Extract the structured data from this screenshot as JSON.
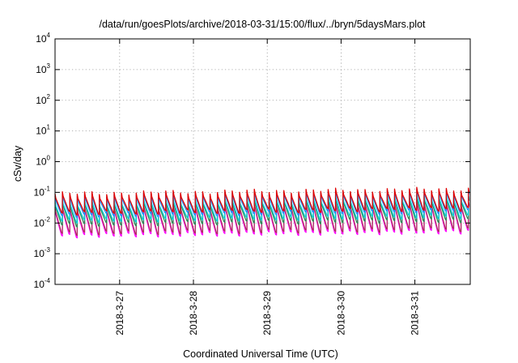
{
  "chart_data": {
    "type": "line",
    "title": "/data/run/goesPlots/archive/2018-03-31/15:00/flux/../bryn/5daysMars.plot",
    "xlabel": "Coordinated Universal Time (UTC)",
    "ylabel": "cSv/day",
    "yscale": "log",
    "ylim": [
      0.0001,
      10000
    ],
    "xlim": [
      "2018-03-26 03:00",
      "2018-03-31 18:00"
    ],
    "x_ticks": [
      "2018-3-27",
      "2018-3-28",
      "2018-3-29",
      "2018-3-30",
      "2018-3-31"
    ],
    "y_ticks": [
      {
        "base": "10",
        "exp": "-4"
      },
      {
        "base": "10",
        "exp": "-3"
      },
      {
        "base": "10",
        "exp": "-2"
      },
      {
        "base": "10",
        "exp": "-1"
      },
      {
        "base": "10",
        "exp": "0"
      },
      {
        "base": "10",
        "exp": "1"
      },
      {
        "base": "10",
        "exp": "2"
      },
      {
        "base": "10",
        "exp": "3"
      },
      {
        "base": "10",
        "exp": "4"
      }
    ],
    "grid": true,
    "legend": "none",
    "sawtooth_period_hours": 2.4,
    "series": [
      {
        "color": "#ff00ff",
        "peak_start": 0.028,
        "peak_end": 0.045,
        "trough_start": 0.004,
        "trough_end": 0.0055
      },
      {
        "color": "#b03060",
        "peak_start": 0.032,
        "peak_end": 0.05,
        "trough_start": 0.0048,
        "trough_end": 0.0065
      },
      {
        "color": "#2e8b57",
        "peak_start": 0.045,
        "peak_end": 0.07,
        "trough_start": 0.009,
        "trough_end": 0.013
      },
      {
        "color": "#00ced1",
        "peak_start": 0.05,
        "peak_end": 0.08,
        "trough_start": 0.012,
        "trough_end": 0.017
      },
      {
        "color": "#1e90ff",
        "peak_start": 0.075,
        "peak_end": 0.115,
        "trough_start": 0.018,
        "trough_end": 0.025
      },
      {
        "color": "#e00000",
        "peak_start": 0.09,
        "peak_end": 0.13,
        "trough_start": 0.022,
        "trough_end": 0.03
      }
    ]
  }
}
